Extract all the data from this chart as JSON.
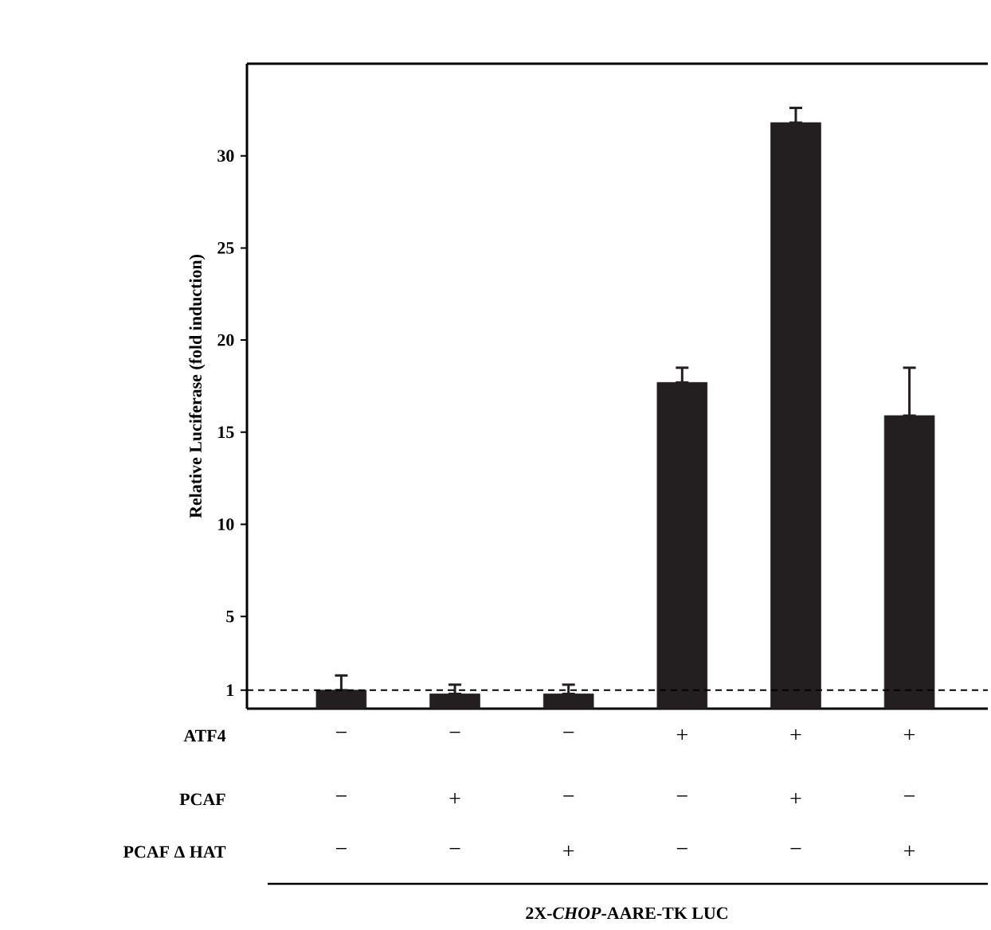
{
  "chart_data": {
    "type": "bar",
    "categories": [
      null,
      null,
      null,
      null,
      null,
      null
    ],
    "values": [
      1,
      0.8,
      0.8,
      17.7,
      31.8,
      15.9
    ],
    "errors": [
      [
        1,
        1.8
      ],
      [
        0.8,
        1.3
      ],
      [
        0.8,
        1.3
      ],
      [
        17.7,
        18.5
      ],
      [
        31.8,
        32.6
      ],
      [
        15.9,
        18.5
      ]
    ],
    "color": "#231f20",
    "ylabel": "Relative Luciferase (fold induction)",
    "ylim": [
      0,
      35
    ],
    "yticks": [
      1,
      5,
      10,
      15,
      20,
      25,
      30
    ],
    "ref_lines": [
      {
        "axis": "y",
        "value": 1,
        "line_style": "dashed",
        "color": "#000000"
      }
    ],
    "annotations": [
      "ATF4",
      "−",
      "−",
      "−",
      "+",
      "+",
      "+",
      "PCAF",
      "−",
      "+",
      "−",
      "−",
      "+",
      "−",
      "PCAF Δ HAT",
      "−",
      "−",
      "+",
      "−",
      "−",
      "+",
      "2X-*CHOP*-AARE-TK LUC"
    ],
    "grid": false
  }
}
